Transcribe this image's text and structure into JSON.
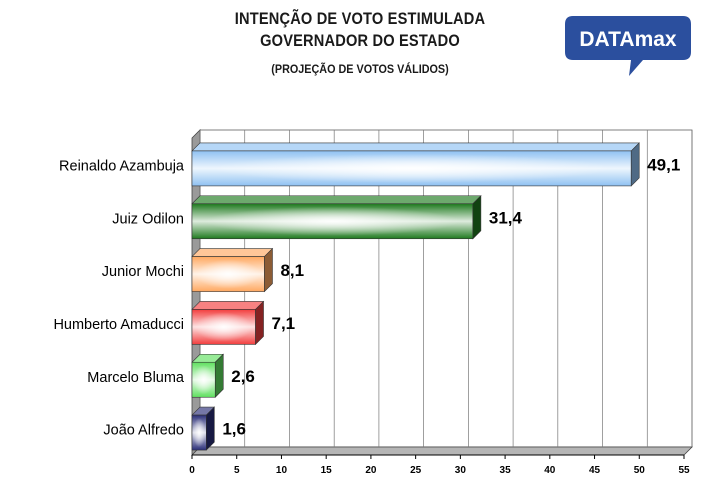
{
  "header": {
    "title_line1": "INTENÇÃO DE VOTO ESTIMULADA",
    "title_line2": "GOVERNADOR DO ESTADO",
    "subtitle": "(PROJEÇÃO  DE VOTOS VÁLIDOS)"
  },
  "logo": {
    "text": "DATAmax",
    "color": "#2b4f9e"
  },
  "chart_data": {
    "type": "bar",
    "orientation": "horizontal",
    "categories": [
      "Reinaldo Azambuja",
      "Juiz Odilon",
      "Junior Mochi",
      "Humberto Amaducci",
      "Marcelo Bluma",
      "João Alfredo"
    ],
    "values": [
      49.1,
      31.4,
      8.1,
      7.1,
      2.6,
      1.6
    ],
    "value_labels": [
      "49,1",
      "31,4",
      "8,1",
      "7,1",
      "2,6",
      "1,6"
    ],
    "bar_colors": [
      "#8fc1f2",
      "#1e7a1e",
      "#ffa860",
      "#f23d3d",
      "#5fe05f",
      "#2a2e78"
    ],
    "xlim": [
      0,
      55
    ],
    "xticks": [
      0,
      5,
      10,
      15,
      20,
      25,
      30,
      35,
      40,
      45,
      50,
      55
    ],
    "grid": true
  }
}
